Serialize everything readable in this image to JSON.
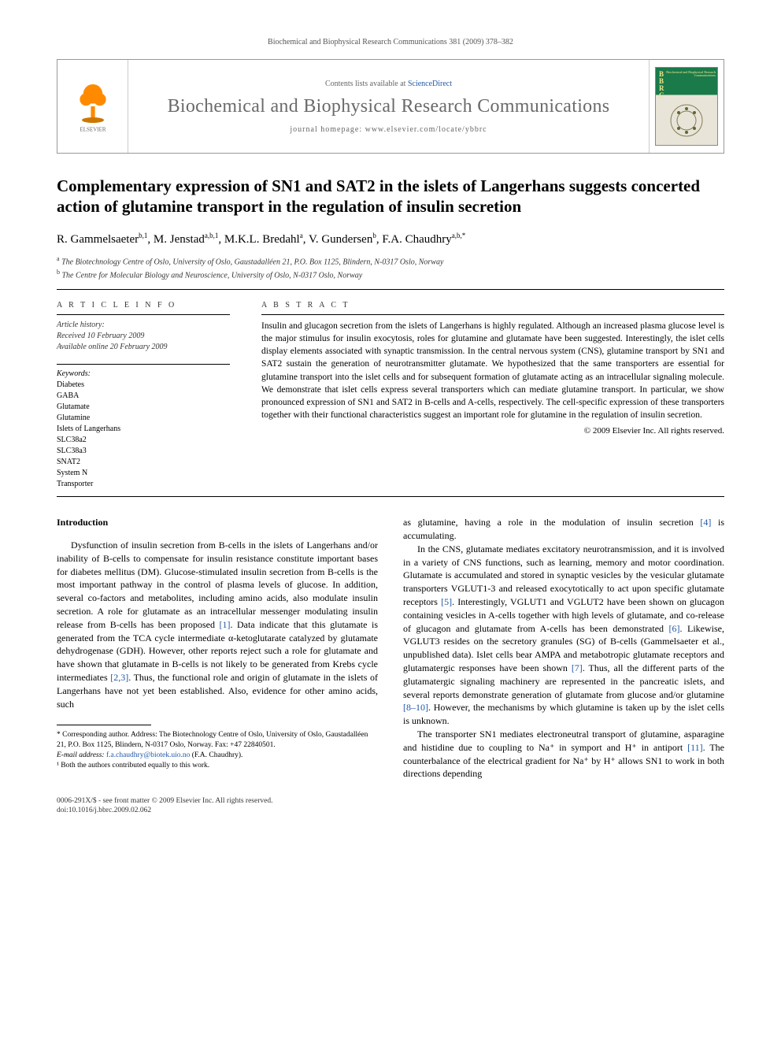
{
  "header": {
    "citation": "Biochemical and Biophysical Research Communications 381 (2009) 378–382"
  },
  "masthead": {
    "publisher_label": "ELSEVIER",
    "contents_prefix": "Contents lists available at ",
    "contents_link": "ScienceDirect",
    "journal_name": "Biochemical and Biophysical Research Communications",
    "homepage_prefix": "journal homepage: ",
    "homepage_url": "www.elsevier.com/locate/ybbrc",
    "cover_abbrev": "BBRC",
    "cover_subtitle": "Biochemical and Biophysical Research Communications"
  },
  "article": {
    "title": "Complementary expression of SN1 and SAT2 in the islets of Langerhans suggests concerted action of glutamine transport in the regulation of insulin secretion",
    "authors_html": "R. Gammelsaeter",
    "authors": [
      {
        "name": "R. Gammelsaeter",
        "sup": "b,1"
      },
      {
        "name": "M. Jenstad",
        "sup": "a,b,1"
      },
      {
        "name": "M.K.L. Bredahl",
        "sup": "a"
      },
      {
        "name": "V. Gundersen",
        "sup": "b"
      },
      {
        "name": "F.A. Chaudhry",
        "sup": "a,b,*"
      }
    ],
    "affiliations": [
      {
        "sup": "a",
        "text": "The Biotechnology Centre of Oslo, University of Oslo, Gaustadalléen 21, P.O. Box 1125, Blindern, N-0317 Oslo, Norway"
      },
      {
        "sup": "b",
        "text": "The Centre for Molecular Biology and Neuroscience, University of Oslo, N-0317 Oslo, Norway"
      }
    ]
  },
  "info": {
    "section_label": "A R T I C L E   I N F O",
    "history_label": "Article history:",
    "received": "Received 10 February 2009",
    "online": "Available online 20 February 2009",
    "keywords_label": "Keywords:",
    "keywords": [
      "Diabetes",
      "GABA",
      "Glutamate",
      "Glutamine",
      "Islets of Langerhans",
      "SLC38a2",
      "SLC38a3",
      "SNAT2",
      "System N",
      "Transporter"
    ]
  },
  "abstract": {
    "section_label": "A B S T R A C T",
    "text": "Insulin and glucagon secretion from the islets of Langerhans is highly regulated. Although an increased plasma glucose level is the major stimulus for insulin exocytosis, roles for glutamine and glutamate have been suggested. Interestingly, the islet cells display elements associated with synaptic transmission. In the central nervous system (CNS), glutamine transport by SN1 and SAT2 sustain the generation of neurotransmitter glutamate. We hypothesized that the same transporters are essential for glutamine transport into the islet cells and for subsequent formation of glutamate acting as an intracellular signaling molecule. We demonstrate that islet cells express several transporters which can mediate glutamine transport. In particular, we show pronounced expression of SN1 and SAT2 in B-cells and A-cells, respectively. The cell-specific expression of these transporters together with their functional characteristics suggest an important role for glutamine in the regulation of insulin secretion.",
    "copyright": "© 2009 Elsevier Inc. All rights reserved."
  },
  "body": {
    "intro_heading": "Introduction",
    "col1_p1": "Dysfunction of insulin secretion from B-cells in the islets of Langerhans and/or inability of B-cells to compensate for insulin resistance constitute important bases for diabetes mellitus (DM). Glucose-stimulated insulin secretion from B-cells is the most important pathway in the control of plasma levels of glucose. In addition, several co-factors and metabolites, including amino acids, also modulate insulin secretion. A role for glutamate as an intracellular messenger modulating insulin release from B-cells has been proposed ",
    "cite1": "[1]",
    "col1_p1b": ". Data indicate that this glutamate is generated from the TCA cycle intermediate α-ketoglutarate catalyzed by glutamate dehydrogenase (GDH). However, other reports reject such a role for glutamate and have shown that glutamate in B-cells is not likely to be generated from Krebs cycle intermediates ",
    "cite2": "[2,3]",
    "col1_p1c": ". Thus, the functional role and origin of glutamate in the islets of Langerhans have not yet been established. Also, evidence for other amino acids, such",
    "col2_p1": "as glutamine, having a role in the modulation of insulin secretion ",
    "cite4": "[4]",
    "col2_p1b": " is accumulating.",
    "col2_p2": "In the CNS, glutamate mediates excitatory neurotransmission, and it is involved in a variety of CNS functions, such as learning, memory and motor coordination. Glutamate is accumulated and stored in synaptic vesicles by the vesicular glutamate transporters VGLUT1-3 and released exocytotically to act upon specific glutamate receptors ",
    "cite5": "[5]",
    "col2_p2b": ". Interestingly, VGLUT1 and VGLUT2 have been shown on glucagon containing vesicles in A-cells together with high levels of glutamate, and co-release of glucagon and glutamate from A-cells has been demonstrated ",
    "cite6": "[6]",
    "col2_p2c": ". Likewise, VGLUT3 resides on the secretory granules (SG) of B-cells (Gammelsaeter et al., unpublished data). Islet cells bear AMPA and metabotropic glutamate receptors and glutamatergic responses have been shown ",
    "cite7": "[7]",
    "col2_p2d": ". Thus, all the different parts of the glutamatergic signaling machinery are represented in the pancreatic islets, and several reports demonstrate generation of glutamate from glucose and/or glutamine ",
    "cite8": "[8–10]",
    "col2_p2e": ". However, the mechanisms by which glutamine is taken up by the islet cells is unknown.",
    "col2_p3": "The transporter SN1 mediates electroneutral transport of glutamine, asparagine and histidine due to coupling to Na⁺ in symport and H⁺ in antiport ",
    "cite11": "[11]",
    "col2_p3b": ". The counterbalance of the electrical gradient for Na⁺ by H⁺ allows SN1 to work in both directions depending"
  },
  "footnotes": {
    "corresponding": "* Corresponding author. Address: The Biotechnology Centre of Oslo, University of Oslo, Gaustadalléen 21, P.O. Box 1125, Blindern, N-0317 Oslo, Norway. Fax: +47 22840501.",
    "email_label": "E-mail address: ",
    "email": "f.a.chaudhry@biotek.uio.no",
    "email_suffix": " (F.A. Chaudhry).",
    "equal": "¹ Both the authors contributed equally to this work."
  },
  "footer": {
    "line1": "0006-291X/$ - see front matter © 2009 Elsevier Inc. All rights reserved.",
    "line2": "doi:10.1016/j.bbrc.2009.02.062"
  },
  "colors": {
    "link": "#2158a8",
    "elsevier_orange": "#ff8a00",
    "cover_green": "#1a7a4a",
    "cover_beige": "#e8e4d8",
    "text_grey": "#6a6a6a"
  }
}
